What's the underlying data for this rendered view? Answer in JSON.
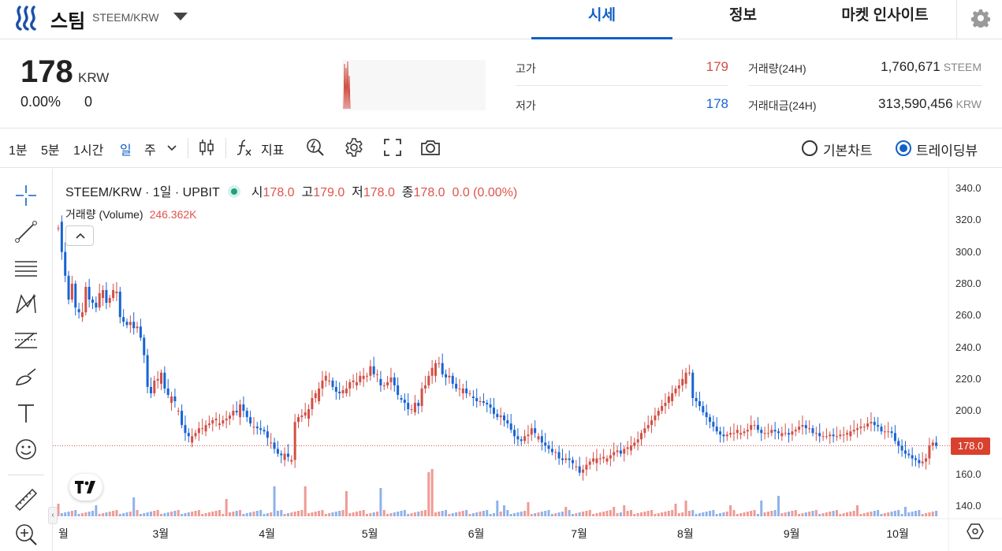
{
  "header": {
    "coin_name": "스팀",
    "pair": "STEEM/KRW",
    "tabs": [
      {
        "label": "시세",
        "active": true
      },
      {
        "label": "정보",
        "active": false
      },
      {
        "label": "마켓 인사이트",
        "active": false
      }
    ]
  },
  "ticker": {
    "price": "178",
    "price_unit": "KRW",
    "change_pct": "0.00%",
    "change_abs": "0",
    "high_label": "고가",
    "high_value": "179",
    "low_label": "저가",
    "low_value": "178",
    "volume_label": "거래량(24H)",
    "volume_value": "1,760,671",
    "volume_unit": "STEEM",
    "amount_label": "거래대금(24H)",
    "amount_value": "313,590,456",
    "amount_unit": "KRW"
  },
  "toolbar": {
    "intervals": [
      "1분",
      "5분",
      "1시간",
      "일",
      "주"
    ],
    "active_interval": "일",
    "indicator_label": "지표",
    "chart_modes": [
      {
        "label": "기본차트",
        "selected": false
      },
      {
        "label": "트레이딩뷰",
        "selected": true
      }
    ]
  },
  "chart": {
    "symbol_line": "STEEM/KRW · 1일 · UPBIT",
    "ohlc": [
      {
        "k": "시",
        "v": "178.0"
      },
      {
        "k": "고",
        "v": "179.0"
      },
      {
        "k": "저",
        "v": "178.0"
      },
      {
        "k": "종",
        "v": "178.0"
      },
      {
        "k": "",
        "v": "0.0 (0.00%)"
      }
    ],
    "volume_label": "거래량 (Volume)",
    "volume_value": "246.362K",
    "last_price_tag": "178.0",
    "colors": {
      "up": "#d24f45",
      "down": "#1763d6",
      "vol_up": "#ef9a94",
      "vol_down": "#8fb2ea"
    }
  },
  "chart_data": {
    "type": "candlestick",
    "ylim": [
      140,
      340
    ],
    "y_ticks": [
      "340.0",
      "320.0",
      "300.0",
      "280.0",
      "260.0",
      "240.0",
      "220.0",
      "200.0",
      "180.0",
      "160.0",
      "140.0"
    ],
    "x_ticks": [
      "월",
      "3월",
      "4월",
      "5월",
      "6월",
      "7월",
      "8월",
      "9월",
      "10월"
    ],
    "x_tick_index": [
      0,
      30,
      61,
      91,
      122,
      152,
      183,
      214,
      244
    ],
    "close": [
      315,
      300,
      285,
      270,
      280,
      265,
      262,
      262,
      278,
      270,
      268,
      265,
      274,
      276,
      268,
      271,
      276,
      275,
      259,
      256,
      254,
      256,
      252,
      253,
      246,
      235,
      215,
      211,
      219,
      220,
      224,
      214,
      210,
      209,
      206,
      200,
      191,
      186,
      184,
      184,
      186,
      189,
      189,
      191,
      192,
      194,
      195,
      192,
      194,
      195,
      197,
      200,
      199,
      204,
      200,
      196,
      192,
      190,
      189,
      188,
      187,
      183,
      180,
      176,
      173,
      172,
      173,
      171,
      169,
      193,
      196,
      197,
      199,
      201,
      208,
      211,
      214,
      219,
      222,
      219,
      215,
      212,
      211,
      213,
      214,
      218,
      219,
      218,
      222,
      222,
      222,
      228,
      223,
      223,
      216,
      216,
      218,
      221,
      216,
      210,
      207,
      205,
      201,
      201,
      205,
      203,
      214,
      216,
      222,
      227,
      230,
      230,
      223,
      221,
      222,
      217,
      214,
      214,
      214,
      211,
      211,
      208,
      206,
      206,
      205,
      204,
      202,
      198,
      196,
      197,
      194,
      192,
      188,
      184,
      182,
      181,
      184,
      185,
      189,
      186,
      184,
      180,
      178,
      176,
      174,
      174,
      170,
      169,
      170,
      169,
      167,
      165,
      161,
      163,
      166,
      168,
      170,
      170,
      170,
      171,
      170,
      172,
      174,
      175,
      173,
      176,
      177,
      178,
      180,
      182,
      186,
      189,
      191,
      194,
      197,
      200,
      203,
      205,
      209,
      211,
      214,
      216,
      220,
      224,
      224,
      208,
      206,
      203,
      199,
      196,
      193,
      190,
      187,
      185,
      184,
      185,
      186,
      186,
      188,
      186,
      187,
      188,
      191,
      191,
      188,
      186,
      186,
      186,
      188,
      187,
      186,
      186,
      186,
      185,
      187,
      188,
      190,
      191,
      189,
      189,
      186,
      186,
      184,
      184,
      184,
      185,
      184,
      184,
      185,
      185,
      186,
      187,
      188,
      189,
      190,
      190,
      192,
      193,
      191,
      190,
      187,
      187,
      187,
      186,
      181,
      178,
      175,
      173,
      172,
      170,
      169,
      167,
      168,
      170,
      178,
      180,
      178
    ],
    "open_offsets": [
      0,
      4,
      0,
      0,
      0,
      0,
      -1,
      -3,
      0,
      0,
      0,
      0,
      0,
      -3,
      0,
      0,
      0,
      -2,
      0,
      0,
      0,
      0,
      0,
      0,
      0,
      0,
      0,
      0,
      0,
      0,
      -3,
      0,
      0,
      -5,
      0,
      -6,
      0,
      0,
      0,
      -4,
      0,
      0,
      0,
      -2,
      0,
      0,
      0,
      -4,
      0,
      0,
      0,
      0,
      0,
      -3,
      0,
      0,
      0,
      -2,
      0,
      0,
      0,
      0,
      -3,
      0,
      0,
      0,
      -3,
      0,
      -3,
      0,
      0,
      0,
      0,
      -4,
      0,
      0,
      -5,
      0,
      0,
      -3,
      0,
      0,
      0,
      0,
      -2,
      0,
      0,
      -3,
      0,
      -2,
      0,
      0,
      0,
      0,
      -3,
      0,
      0,
      0,
      0,
      0,
      -2,
      0,
      0,
      0,
      -2,
      0,
      0,
      0,
      0,
      0,
      -5,
      0,
      0,
      0,
      0,
      0,
      0,
      0,
      -3,
      0,
      0,
      -2,
      0,
      0,
      0,
      0,
      0,
      0,
      0,
      0,
      0,
      0,
      0,
      0,
      0,
      0,
      0,
      0,
      0,
      0,
      -4,
      0,
      0,
      0,
      0,
      0,
      0,
      0,
      0,
      0,
      0,
      -2,
      0,
      0,
      0,
      0,
      0,
      -3,
      0,
      0,
      -3,
      0,
      0,
      0,
      0,
      0,
      0,
      -2,
      0,
      0,
      0,
      0,
      0,
      0,
      0,
      0,
      0,
      0,
      0,
      -3,
      0,
      0,
      0,
      -3,
      0,
      0,
      0,
      0,
      0,
      0,
      0,
      0,
      0,
      0,
      0,
      0,
      0,
      0,
      0,
      -3,
      0,
      0,
      0,
      0,
      0,
      0,
      0,
      0,
      0,
      0,
      0,
      -2,
      0,
      0,
      0,
      0,
      0,
      0,
      0,
      0,
      0,
      0,
      0,
      0,
      0,
      0,
      0,
      0,
      0,
      0,
      0,
      -2,
      0,
      0,
      0,
      0,
      0,
      0,
      0,
      0,
      0,
      0,
      0,
      0,
      0,
      0,
      0,
      0,
      0,
      0,
      0,
      0,
      0,
      0,
      0,
      0,
      0,
      0,
      0,
      0,
      0,
      0,
      0
    ],
    "volume_spikes": {
      "0": 16,
      "11": 14,
      "22": 24,
      "49": 22,
      "63": 38,
      "72": 38,
      "84": 32,
      "94": 36,
      "108": 56,
      "109": 60,
      "128": 20,
      "130": 14,
      "137": 18,
      "148": 12,
      "162": 12,
      "165": 14,
      "180": 16,
      "183": 20,
      "196": 14,
      "205": 20,
      "210": 26,
      "233": 14,
      "247": 12
    }
  }
}
